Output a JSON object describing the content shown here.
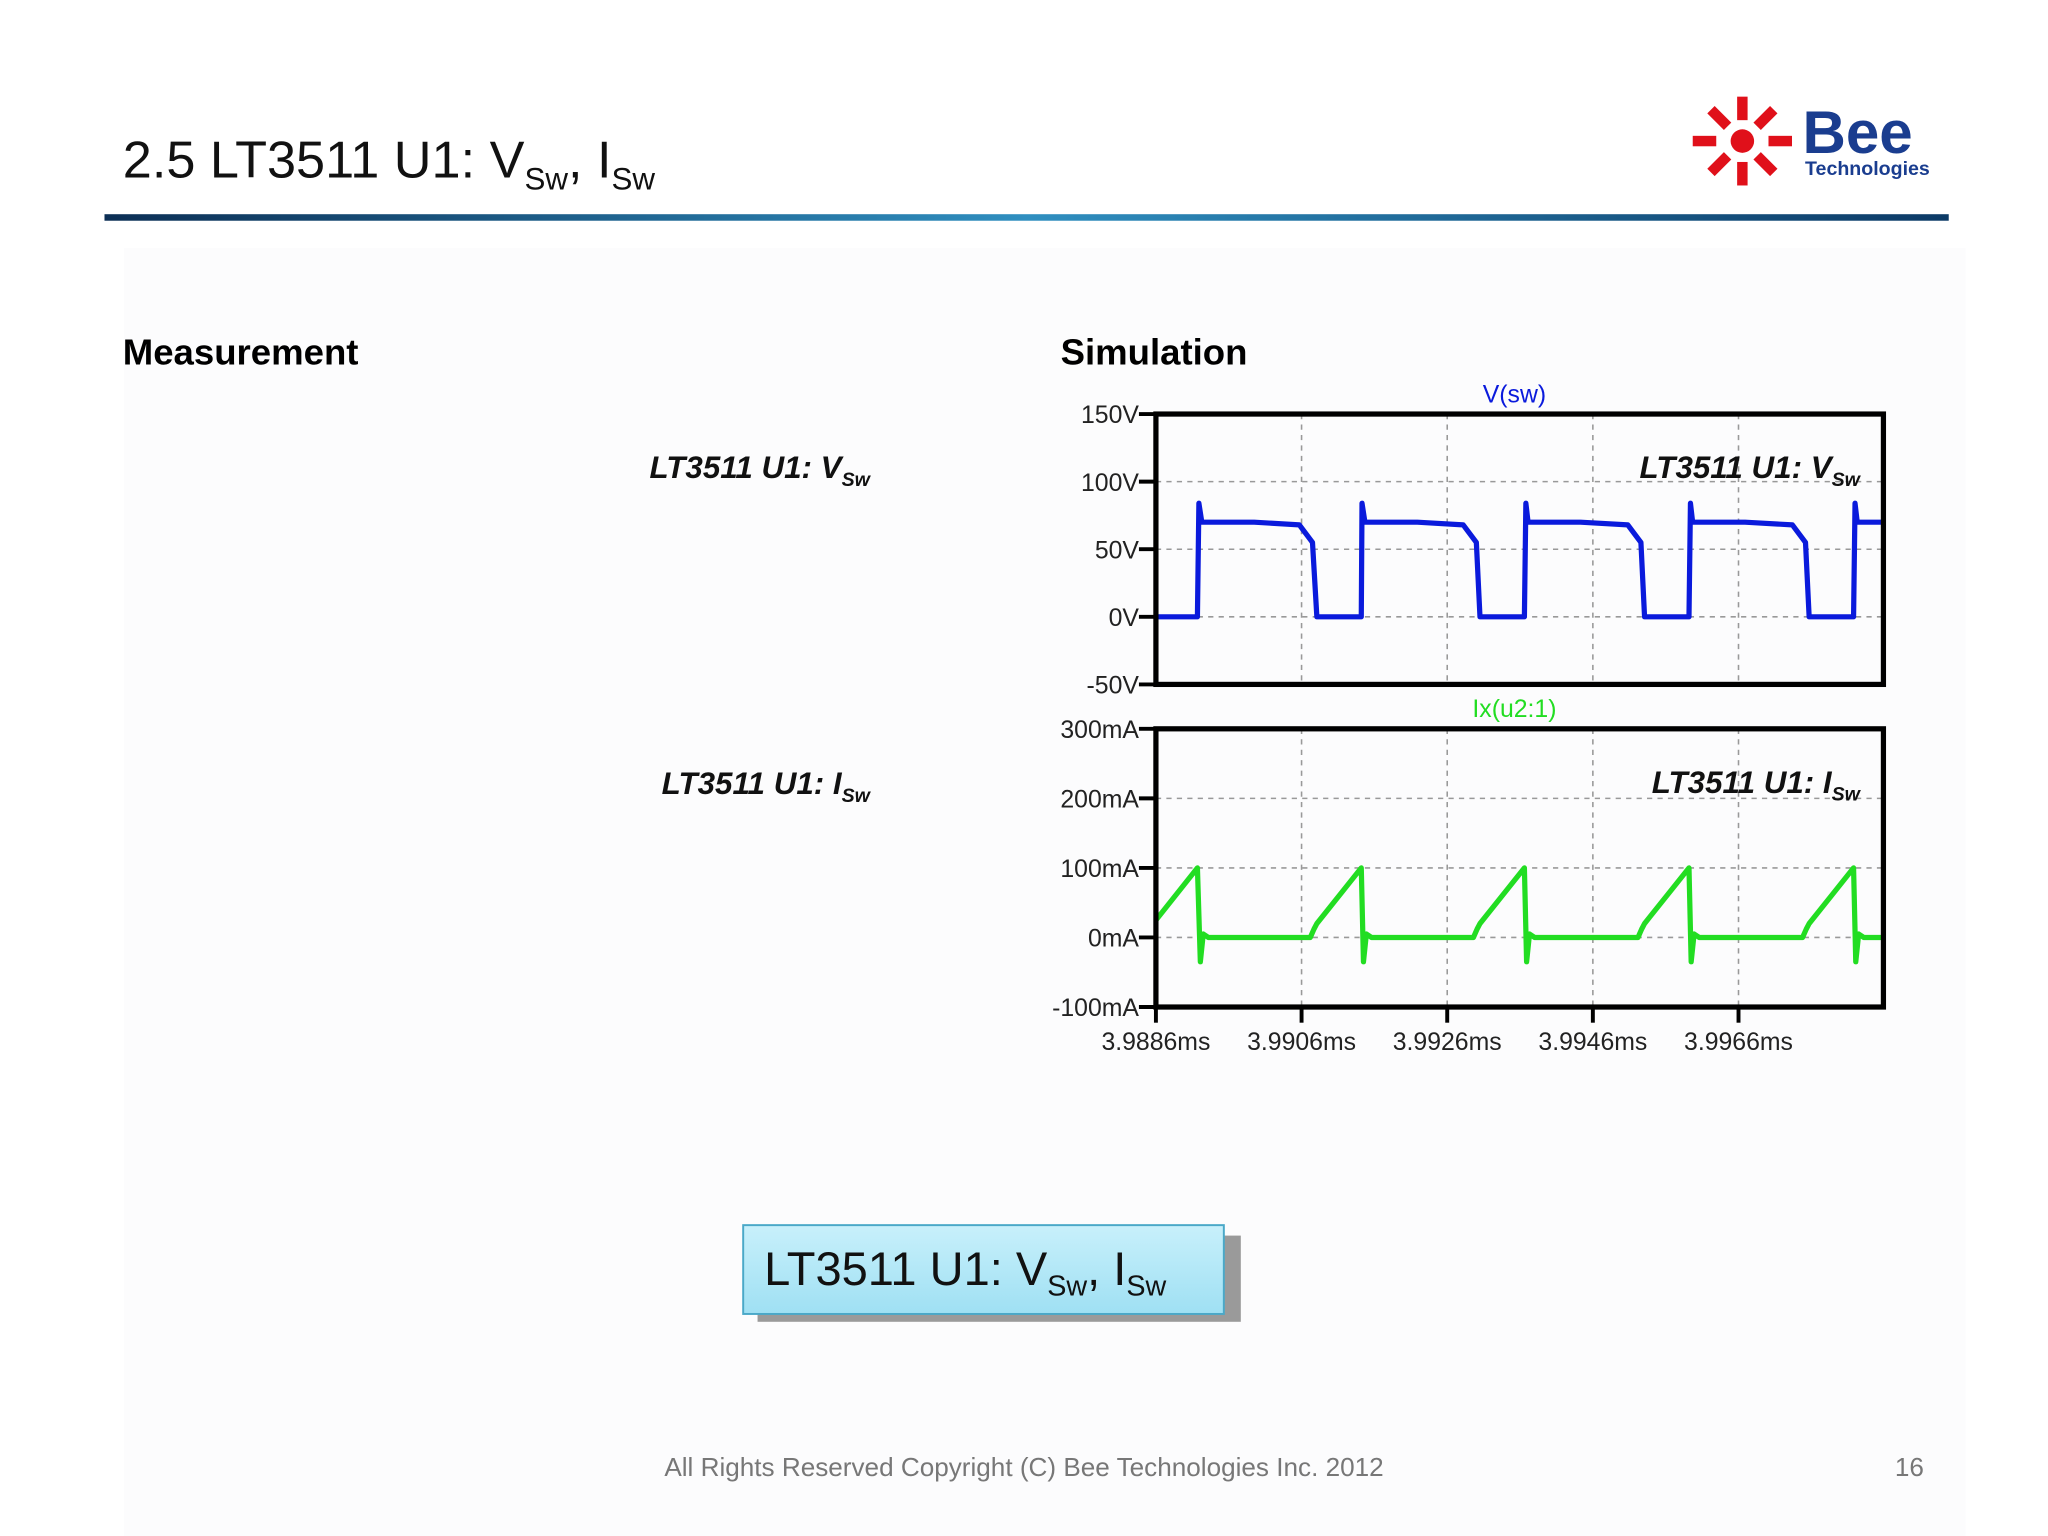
{
  "header": {
    "title": {
      "text": "2.5 LT3511 U1: V",
      "sub": "Sw",
      "text2": ", I",
      "sub2": "Sw"
    },
    "logo": {
      "name": "Bee",
      "tagline": "Technologies"
    }
  },
  "measurement": {
    "heading": "Measurement",
    "labels": [
      {
        "text": "LT3511 U1: V",
        "sub": "Sw"
      },
      {
        "text": "LT3511 U1: I",
        "sub": "Sw"
      }
    ]
  },
  "simulation": {
    "heading": "Simulation"
  },
  "chart_data": [
    {
      "type": "line",
      "x": [
        3.9886,
        3.98917,
        3.98919,
        3.98923,
        3.98995,
        3.99057,
        3.99075,
        3.99081,
        3.99142,
        3.99143,
        3.99147,
        3.99219,
        3.99282,
        3.993,
        3.99305,
        3.99366,
        3.99368,
        3.99371,
        3.99443,
        3.99508,
        3.99526,
        3.99531,
        3.99592,
        3.99594,
        3.99597,
        3.99669,
        3.99734,
        3.99752,
        3.99757,
        3.99818,
        3.9982,
        3.99823,
        3.99859
      ],
      "series": [
        {
          "name": "V(sw)",
          "color": "#0a1adc",
          "values": [
            0,
            0,
            84,
            70,
            70,
            68,
            55,
            0,
            0,
            84,
            70,
            70,
            68,
            55,
            0,
            0,
            84,
            70,
            70,
            68,
            55,
            0,
            0,
            84,
            70,
            70,
            68,
            55,
            0,
            0,
            84,
            70,
            70
          ]
        }
      ],
      "xlim": [
        3.9886,
        3.99859
      ],
      "ylim": [
        -50,
        150
      ],
      "yticks": [
        {
          "value": 150,
          "label": "150V"
        },
        {
          "value": 100,
          "label": "100V"
        },
        {
          "value": 50,
          "label": "50V"
        },
        {
          "value": 0,
          "label": "0V"
        },
        {
          "value": -50,
          "label": "-50V"
        }
      ],
      "grid": true,
      "annotation": {
        "text": "LT3511 U1: V",
        "sub": "Sw"
      }
    },
    {
      "type": "line",
      "x": [
        3.9886,
        3.98917,
        3.98921,
        3.98925,
        3.98932,
        3.99072,
        3.99077,
        3.99081,
        3.99142,
        3.99145,
        3.99149,
        3.99156,
        3.99296,
        3.99301,
        3.99305,
        3.99366,
        3.99369,
        3.99373,
        3.9938,
        3.99522,
        3.99527,
        3.99531,
        3.99592,
        3.99595,
        3.99599,
        3.99606,
        3.99748,
        3.99753,
        3.99757,
        3.99818,
        3.99821,
        3.99825,
        3.99832,
        3.99859
      ],
      "series": [
        {
          "name": "Ix(u2:1)",
          "color": "#22dd22",
          "values": [
            25,
            100,
            -35,
            5,
            0,
            0,
            12,
            20,
            100,
            -35,
            5,
            0,
            0,
            12,
            20,
            100,
            -35,
            5,
            0,
            0,
            12,
            20,
            100,
            -35,
            5,
            0,
            0,
            12,
            20,
            100,
            -35,
            5,
            0,
            0
          ]
        }
      ],
      "xlim": [
        3.9886,
        3.99859
      ],
      "xticks": [
        {
          "value": 3.9886,
          "label": "3.9886ms"
        },
        {
          "value": 3.9906,
          "label": "3.9906ms"
        },
        {
          "value": 3.9926,
          "label": "3.9926ms"
        },
        {
          "value": 3.9946,
          "label": "3.9946ms"
        },
        {
          "value": 3.9966,
          "label": "3.9966ms"
        }
      ],
      "ylim": [
        -100,
        300
      ],
      "yticks": [
        {
          "value": 300,
          "label": "300mA"
        },
        {
          "value": 200,
          "label": "200mA"
        },
        {
          "value": 100,
          "label": "100mA"
        },
        {
          "value": 0,
          "label": "0mA"
        },
        {
          "value": -100,
          "label": "-100mA"
        }
      ],
      "grid": true,
      "annotation": {
        "text": "LT3511 U1: I",
        "sub": "Sw"
      }
    }
  ],
  "callout": {
    "text": "LT3511 U1: V",
    "sub": "Sw",
    "text2": ", I",
    "sub2": "Sw"
  },
  "footer": {
    "copyright": "All Rights Reserved Copyright (C) Bee Technologies Inc. 2012",
    "page": "16"
  }
}
